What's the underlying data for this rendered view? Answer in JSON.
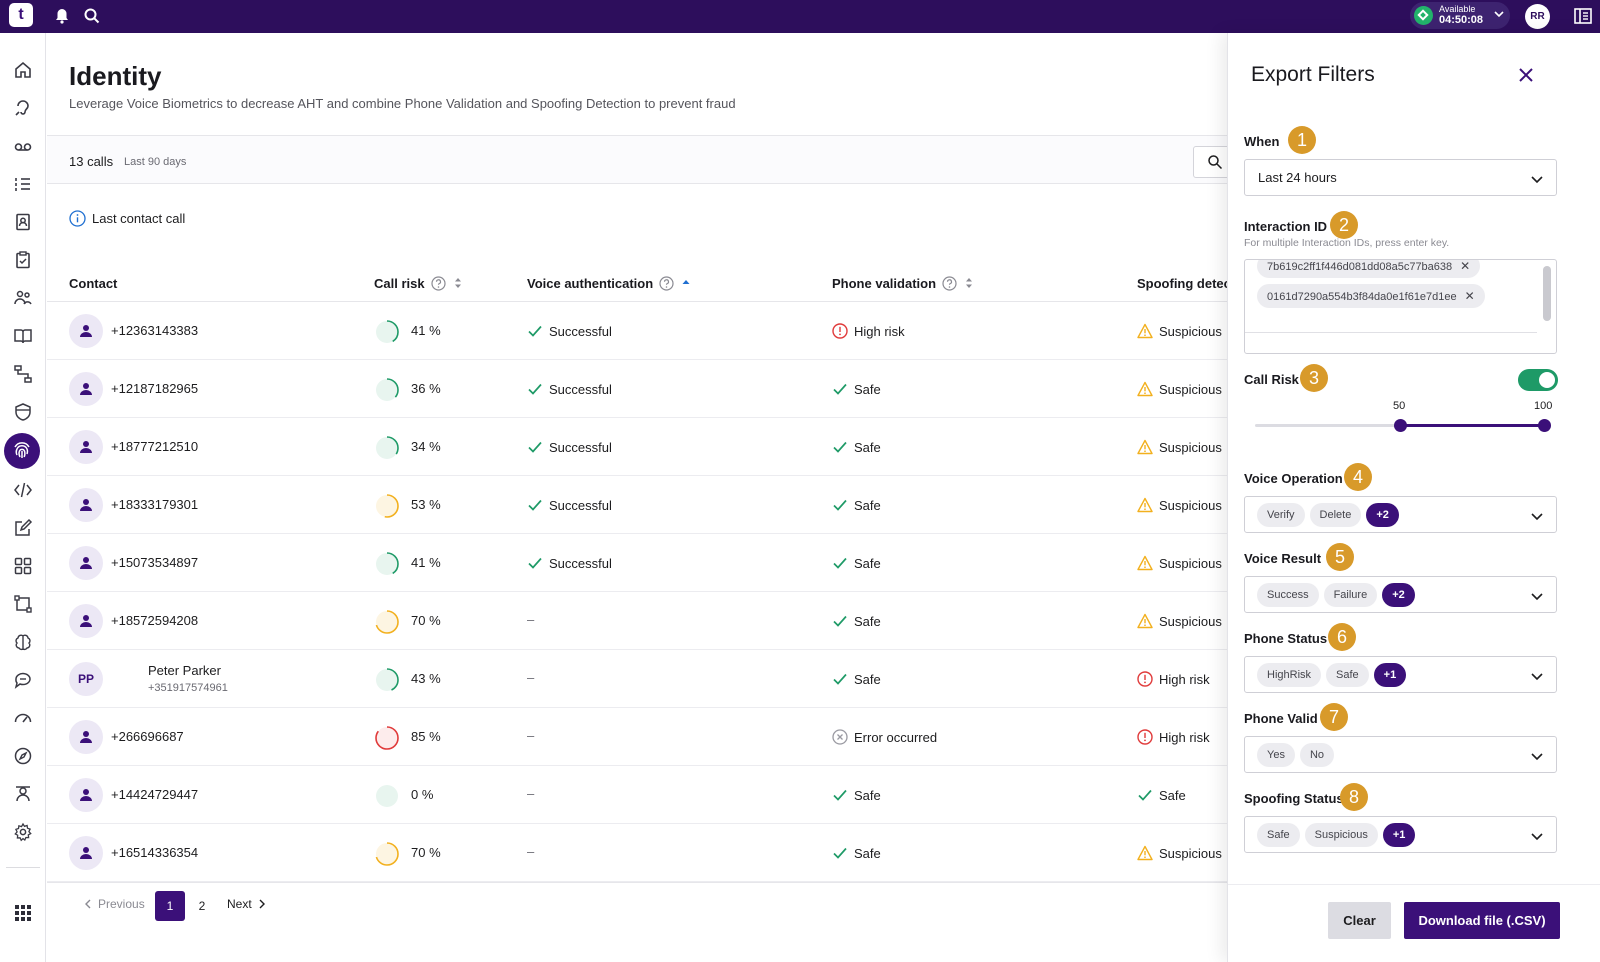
{
  "topbar": {
    "logo": "t",
    "status_label": "Available",
    "status_time": "04:50:08",
    "user_initials": "RR"
  },
  "page": {
    "title": "Identity",
    "subtitle": "Leverage Voice Biometrics to decrease AHT and combine Phone Validation and Spoofing Detection to prevent fraud",
    "calls_count": "13 calls",
    "calls_range": "Last 90 days",
    "info_text": "Last contact call"
  },
  "table": {
    "headers": {
      "contact": "Contact",
      "call_risk": "Call risk",
      "voice_auth": "Voice authentication",
      "phone_validation": "Phone validation",
      "spoofing": "Spoofing detec"
    },
    "rows": [
      {
        "contact": "+12363143383",
        "risk": "41 %",
        "voice": "Successful",
        "phone": "High risk",
        "spoof": "Suspicious"
      },
      {
        "contact": "+12187182965",
        "risk": "36 %",
        "voice": "Successful",
        "phone": "Safe",
        "spoof": "Suspicious"
      },
      {
        "contact": "+18777212510",
        "risk": "34 %",
        "voice": "Successful",
        "phone": "Safe",
        "spoof": "Suspicious"
      },
      {
        "contact": "+18333179301",
        "risk": "53 %",
        "voice": "Successful",
        "phone": "Safe",
        "spoof": "Suspicious"
      },
      {
        "contact": "+15073534897",
        "risk": "41 %",
        "voice": "Successful",
        "phone": "Safe",
        "spoof": "Suspicious"
      },
      {
        "contact": "+18572594208",
        "risk": "70 %",
        "voice": "–",
        "phone": "Safe",
        "spoof": "Suspicious"
      },
      {
        "contact": "Peter Parker",
        "initials": "PP",
        "contact_sub": "+351917574961",
        "risk": "43 %",
        "voice": "–",
        "phone": "Safe",
        "spoof": "High risk"
      },
      {
        "contact": "+266696687",
        "risk": "85 %",
        "voice": "–",
        "phone": "Error occurred",
        "spoof": "High risk"
      },
      {
        "contact": "+14424729447",
        "risk": "0 %",
        "voice": "–",
        "phone": "Safe",
        "spoof": "Safe"
      },
      {
        "contact": "+16514336354",
        "risk": "70 %",
        "voice": "–",
        "phone": "Safe",
        "spoof": "Suspicious"
      }
    ]
  },
  "pagination": {
    "prev": "Previous",
    "pages": [
      "1",
      "2"
    ],
    "next": "Next"
  },
  "drawer": {
    "title": "Export Filters",
    "when": {
      "label": "When",
      "badge": "1",
      "value": "Last 24 hours"
    },
    "interaction": {
      "label": "Interaction ID",
      "badge": "2",
      "hint": "For multiple Interaction IDs, press enter key.",
      "ids": [
        "7b619c2ff1f446d081dd08a5c77ba638",
        "0161d7290a554b3f84da0e1f61e7d1ee"
      ]
    },
    "call_risk": {
      "label": "Call Risk",
      "badge": "3",
      "min_label": "50",
      "max_label": "100",
      "min": 50,
      "max": 100
    },
    "voice_operation": {
      "label": "Voice Operation",
      "badge": "4",
      "chips": [
        "Verify",
        "Delete"
      ],
      "more": "+2"
    },
    "voice_result": {
      "label": "Voice Result",
      "badge": "5",
      "chips": [
        "Success",
        "Failure"
      ],
      "more": "+2"
    },
    "phone_status": {
      "label": "Phone Status",
      "badge": "6",
      "chips": [
        "HighRisk",
        "Safe"
      ],
      "more": "+1"
    },
    "phone_valid": {
      "label": "Phone Valid",
      "badge": "7",
      "chips": [
        "Yes",
        "No"
      ]
    },
    "spoofing_status": {
      "label": "Spoofing Status",
      "badge": "8",
      "chips": [
        "Safe",
        "Suspicious"
      ],
      "more": "+1"
    },
    "clear_label": "Clear",
    "download_label": "Download file (.CSV)"
  },
  "colors": {
    "brand": "#2d0e5c",
    "accent": "#3b1079",
    "success": "#1e9a67",
    "warning": "#f2b01e",
    "danger": "#e03a3a",
    "badge": "#d89a2a"
  },
  "icons": {
    "left_nav": [
      "home-icon",
      "voice-icon",
      "voicemail-icon",
      "list-icon",
      "contacts-icon",
      "clipboard-icon",
      "team-icon",
      "book-icon",
      "flow-icon",
      "shield-icon",
      "fingerprint-icon",
      "code-icon",
      "edit-icon",
      "grid-icon",
      "crop-icon",
      "brain-icon",
      "chat-icon",
      "gauge-icon",
      "compass-icon",
      "agent-icon",
      "gear-icon",
      "apps-icon"
    ]
  }
}
